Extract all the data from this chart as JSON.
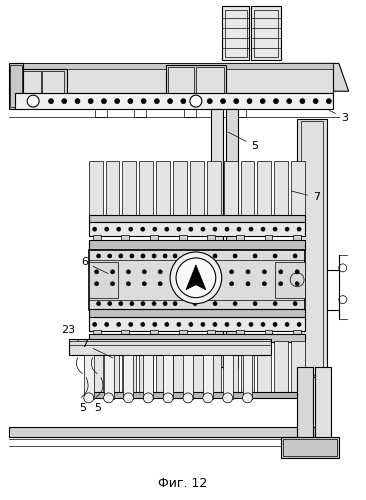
{
  "title": "Фиг. 12",
  "bg_color": "#ffffff",
  "line_color": "#000000",
  "label_color": "#000000",
  "lw_thin": 0.5,
  "lw_med": 0.8,
  "lw_thick": 1.2,
  "figsize": [
    3.66,
    5.0
  ],
  "dpi": 100
}
